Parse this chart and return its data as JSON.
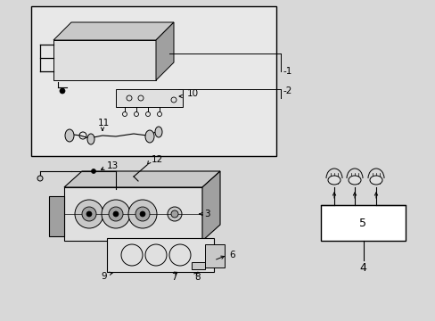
{
  "bg_color": "#d8d8d8",
  "fg_color": "#000000",
  "white": "#ffffff",
  "box_fill": "#e8e8e8",
  "part_fill": "#c8c8c8",
  "part_dark": "#a0a0a0",
  "part_light": "#e0e0e0"
}
